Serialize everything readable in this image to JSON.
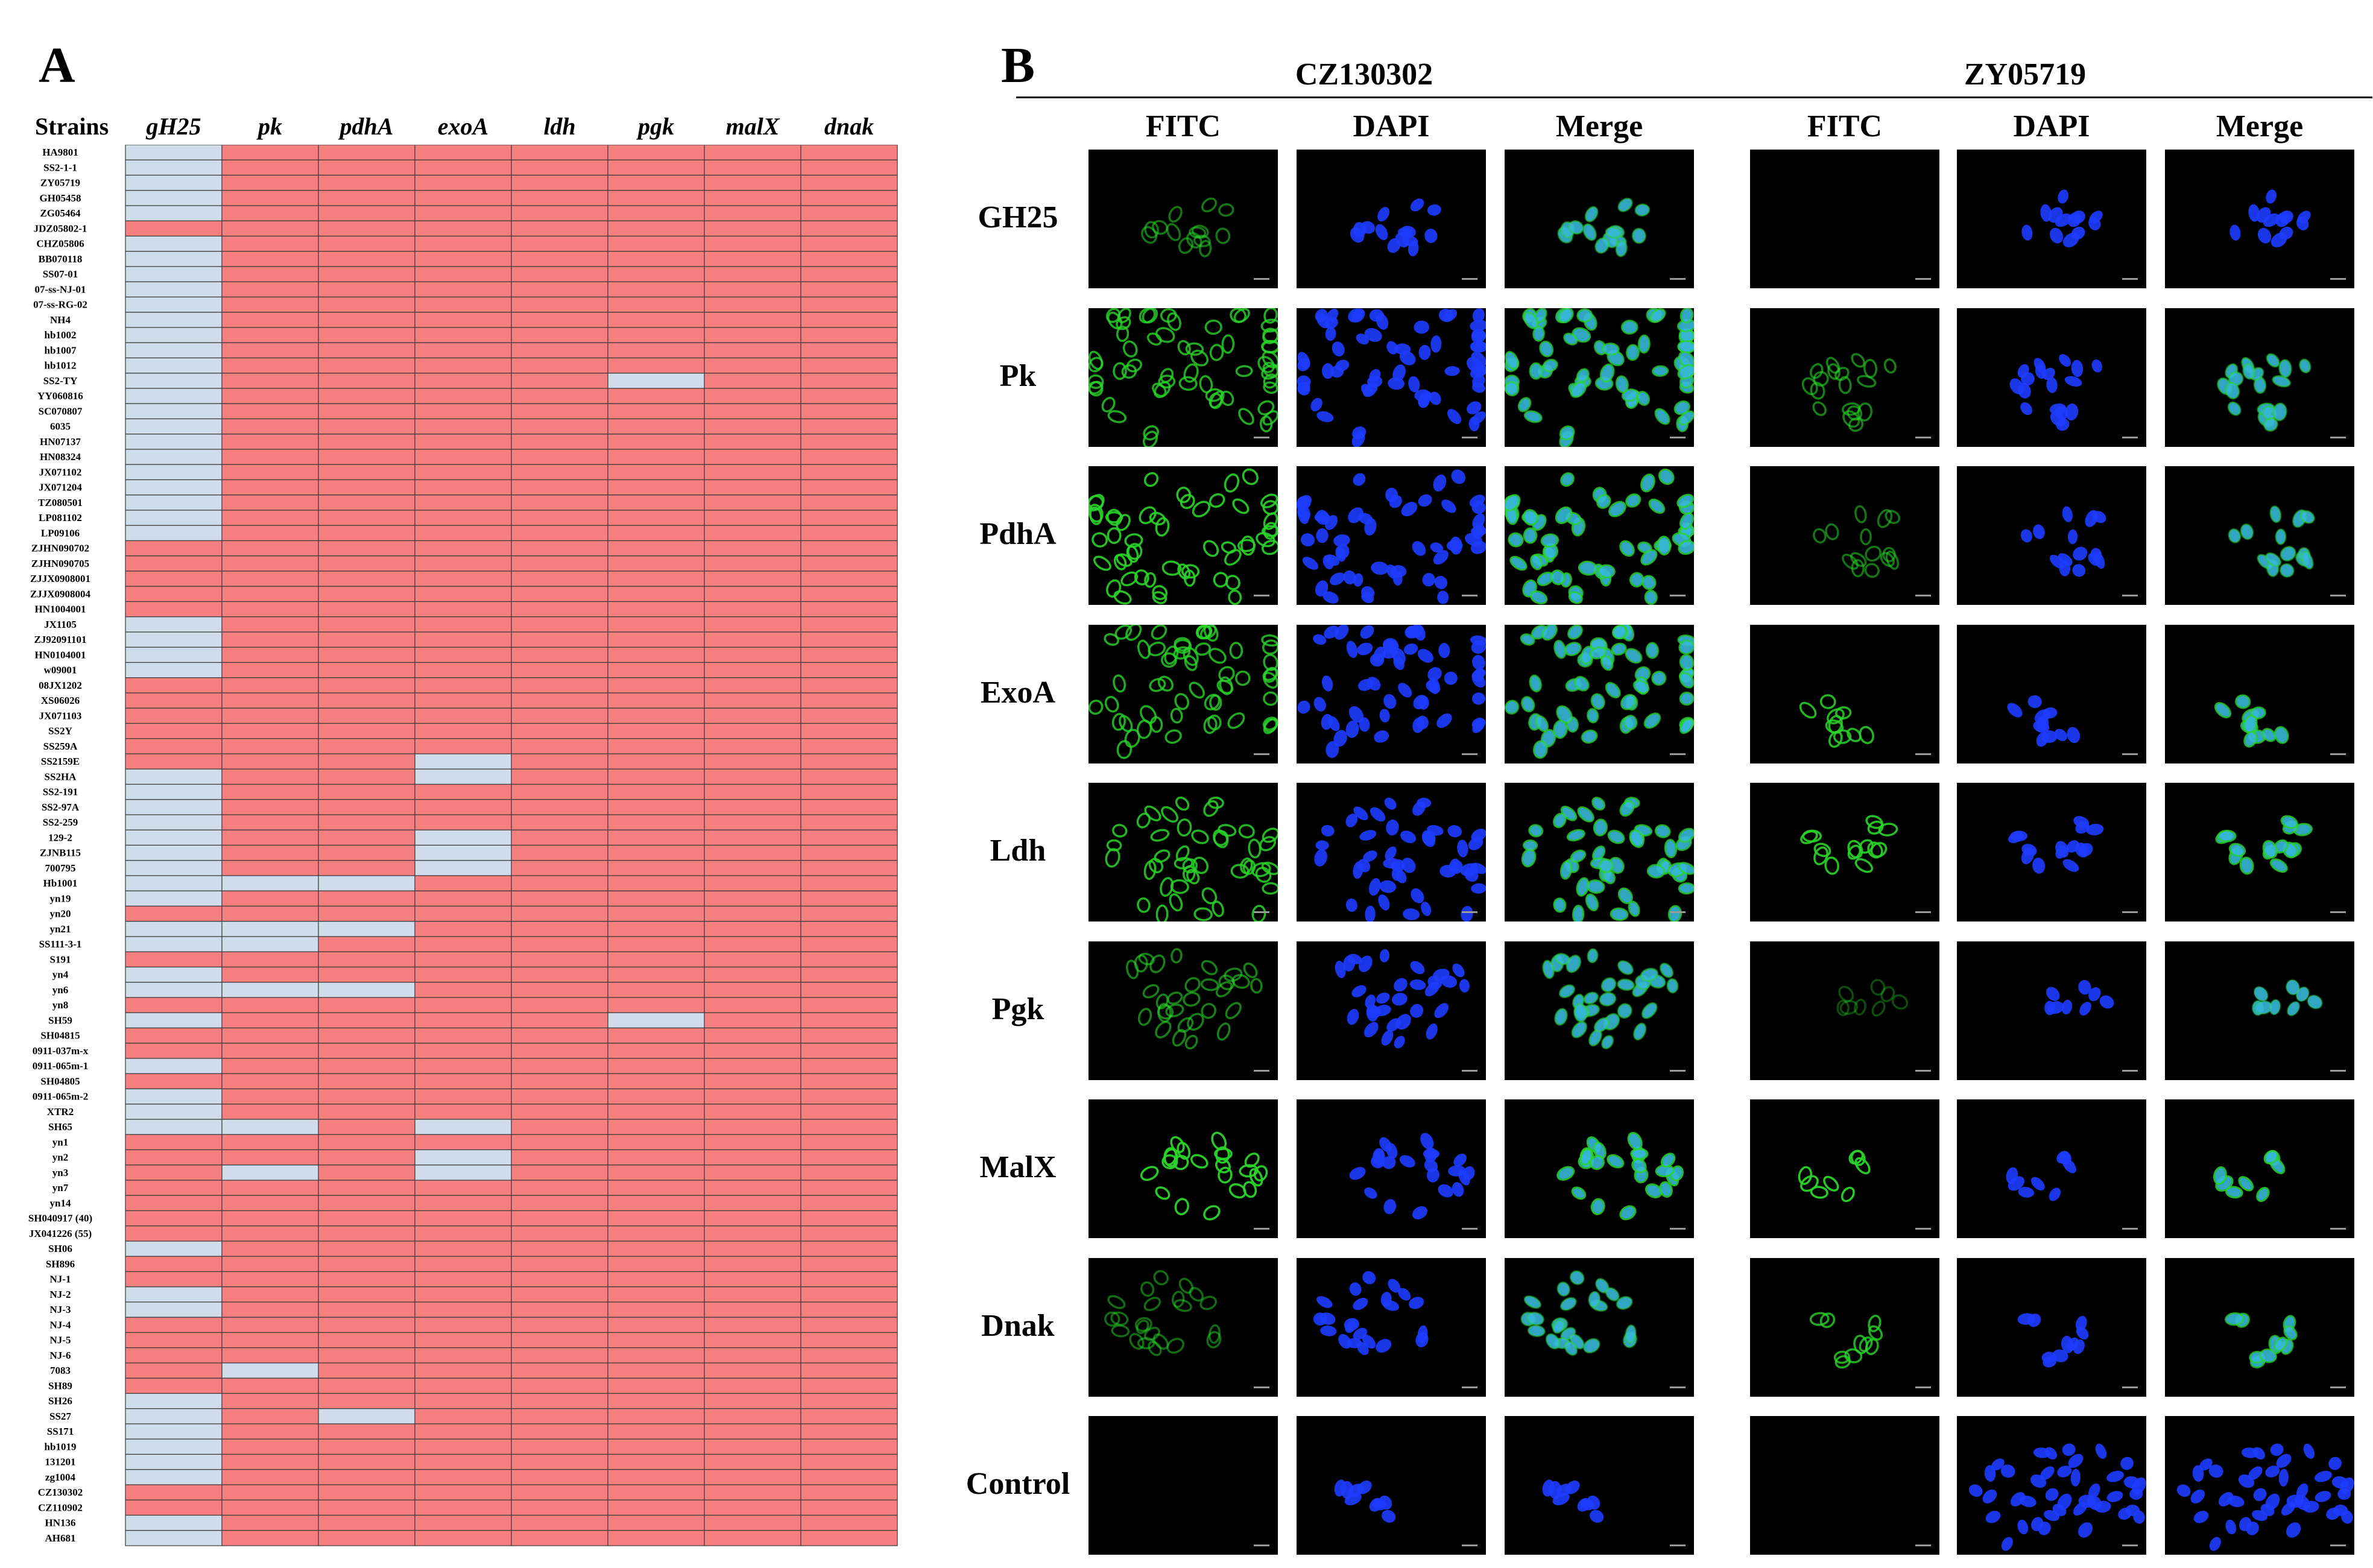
{
  "panel_labels": {
    "a": "A",
    "b": "B"
  },
  "chart_data": [
    {
      "type": "heatmap",
      "panel": "A",
      "row_header": "Strains",
      "columns": [
        "gH25",
        "pk",
        "pdhA",
        "exoA",
        "ldh",
        "pgk",
        "malX",
        "dnak"
      ],
      "rows": [
        "HA9801",
        "SS2-1-1",
        "ZY05719",
        "GH05458",
        "ZG05464",
        "JDZ05802-1",
        "CHZ05806",
        "BB070118",
        "SS07-01",
        "07-ss-NJ-01",
        "07-ss-RG-02",
        "NH4",
        "hb1002",
        "hb1007",
        "hb1012",
        "SS2-TY",
        "YY060816",
        "SC070807",
        "6035",
        "HN07137",
        "HN08324",
        "JX071102",
        "JX071204",
        "TZ080501",
        "LP081102",
        "LP09106",
        "ZJHN090702",
        "ZJHN090705",
        "ZJJX0908001",
        "ZJJX0908004",
        "HN1004001",
        "JX1105",
        "ZJ92091101",
        "HN0104001",
        "w09001",
        "08JX1202",
        "XS06026",
        "JX071103",
        "SS2Y",
        "SS259A",
        "SS2159E",
        "SS2HA",
        "SS2-191",
        "SS2-97A",
        "SS2-259",
        "129-2",
        "ZJNB115",
        "700795",
        "Hb1001",
        "yn19",
        "yn20",
        "yn21",
        "SS111-3-1",
        "S191",
        "yn4",
        "yn6",
        "yn8",
        "SH59",
        "SH04815",
        "0911-037m-x",
        "0911-065m-1",
        "SH04805",
        "0911-065m-2",
        "XTR2",
        "SH65",
        "yn1",
        "yn2",
        "yn3",
        "yn7",
        "yn14",
        "SH040917 (40)",
        "JX041226 (55)",
        "SH06",
        "SH896",
        "NJ-1",
        "NJ-2",
        "NJ-3",
        "NJ-4",
        "NJ-5",
        "NJ-6",
        "7083",
        "SH89",
        "SH26",
        "SS27",
        "SS171",
        "hb1019",
        "131201",
        "zg1004",
        "CZ130302",
        "CZ110902",
        "HN136",
        "AH681"
      ],
      "values": [
        [
          0,
          1,
          1,
          1,
          1,
          1,
          1,
          1
        ],
        [
          0,
          1,
          1,
          1,
          1,
          1,
          1,
          1
        ],
        [
          0,
          1,
          1,
          1,
          1,
          1,
          1,
          1
        ],
        [
          0,
          1,
          1,
          1,
          1,
          1,
          1,
          1
        ],
        [
          0,
          1,
          1,
          1,
          1,
          1,
          1,
          1
        ],
        [
          1,
          1,
          1,
          1,
          1,
          1,
          1,
          1
        ],
        [
          0,
          1,
          1,
          1,
          1,
          1,
          1,
          1
        ],
        [
          0,
          1,
          1,
          1,
          1,
          1,
          1,
          1
        ],
        [
          0,
          1,
          1,
          1,
          1,
          1,
          1,
          1
        ],
        [
          0,
          1,
          1,
          1,
          1,
          1,
          1,
          1
        ],
        [
          0,
          1,
          1,
          1,
          1,
          1,
          1,
          1
        ],
        [
          0,
          1,
          1,
          1,
          1,
          1,
          1,
          1
        ],
        [
          0,
          1,
          1,
          1,
          1,
          1,
          1,
          1
        ],
        [
          0,
          1,
          1,
          1,
          1,
          1,
          1,
          1
        ],
        [
          0,
          1,
          1,
          1,
          1,
          1,
          1,
          1
        ],
        [
          0,
          1,
          1,
          1,
          1,
          0,
          1,
          1
        ],
        [
          0,
          1,
          1,
          1,
          1,
          1,
          1,
          1
        ],
        [
          0,
          1,
          1,
          1,
          1,
          1,
          1,
          1
        ],
        [
          0,
          1,
          1,
          1,
          1,
          1,
          1,
          1
        ],
        [
          0,
          1,
          1,
          1,
          1,
          1,
          1,
          1
        ],
        [
          0,
          1,
          1,
          1,
          1,
          1,
          1,
          1
        ],
        [
          0,
          1,
          1,
          1,
          1,
          1,
          1,
          1
        ],
        [
          0,
          1,
          1,
          1,
          1,
          1,
          1,
          1
        ],
        [
          0,
          1,
          1,
          1,
          1,
          1,
          1,
          1
        ],
        [
          0,
          1,
          1,
          1,
          1,
          1,
          1,
          1
        ],
        [
          0,
          1,
          1,
          1,
          1,
          1,
          1,
          1
        ],
        [
          1,
          1,
          1,
          1,
          1,
          1,
          1,
          1
        ],
        [
          1,
          1,
          1,
          1,
          1,
          1,
          1,
          1
        ],
        [
          1,
          1,
          1,
          1,
          1,
          1,
          1,
          1
        ],
        [
          1,
          1,
          1,
          1,
          1,
          1,
          1,
          1
        ],
        [
          1,
          1,
          1,
          1,
          1,
          1,
          1,
          1
        ],
        [
          0,
          1,
          1,
          1,
          1,
          1,
          1,
          1
        ],
        [
          0,
          1,
          1,
          1,
          1,
          1,
          1,
          1
        ],
        [
          0,
          1,
          1,
          1,
          1,
          1,
          1,
          1
        ],
        [
          0,
          1,
          1,
          1,
          1,
          1,
          1,
          1
        ],
        [
          1,
          1,
          1,
          1,
          1,
          1,
          1,
          1
        ],
        [
          1,
          1,
          1,
          1,
          1,
          1,
          1,
          1
        ],
        [
          1,
          1,
          1,
          1,
          1,
          1,
          1,
          1
        ],
        [
          1,
          1,
          1,
          1,
          1,
          1,
          1,
          1
        ],
        [
          1,
          1,
          1,
          1,
          1,
          1,
          1,
          1
        ],
        [
          1,
          1,
          1,
          0,
          1,
          1,
          1,
          1
        ],
        [
          0,
          1,
          1,
          0,
          1,
          1,
          1,
          1
        ],
        [
          0,
          1,
          1,
          1,
          1,
          1,
          1,
          1
        ],
        [
          0,
          1,
          1,
          1,
          1,
          1,
          1,
          1
        ],
        [
          0,
          1,
          1,
          1,
          1,
          1,
          1,
          1
        ],
        [
          0,
          1,
          1,
          0,
          1,
          1,
          1,
          1
        ],
        [
          0,
          1,
          1,
          0,
          1,
          1,
          1,
          1
        ],
        [
          0,
          1,
          1,
          0,
          1,
          1,
          1,
          1
        ],
        [
          0,
          0,
          0,
          1,
          1,
          1,
          1,
          1
        ],
        [
          0,
          1,
          1,
          1,
          1,
          1,
          1,
          1
        ],
        [
          1,
          1,
          1,
          1,
          1,
          1,
          1,
          1
        ],
        [
          0,
          0,
          0,
          1,
          1,
          1,
          1,
          1
        ],
        [
          0,
          0,
          1,
          1,
          1,
          1,
          1,
          1
        ],
        [
          1,
          1,
          1,
          1,
          1,
          1,
          1,
          1
        ],
        [
          0,
          1,
          1,
          1,
          1,
          1,
          1,
          1
        ],
        [
          0,
          0,
          0,
          1,
          1,
          1,
          1,
          1
        ],
        [
          1,
          1,
          1,
          1,
          1,
          1,
          1,
          1
        ],
        [
          0,
          1,
          1,
          1,
          1,
          0,
          1,
          1
        ],
        [
          1,
          1,
          1,
          1,
          1,
          1,
          1,
          1
        ],
        [
          1,
          1,
          1,
          1,
          1,
          1,
          1,
          1
        ],
        [
          0,
          1,
          1,
          1,
          1,
          1,
          1,
          1
        ],
        [
          1,
          1,
          1,
          1,
          1,
          1,
          1,
          1
        ],
        [
          0,
          1,
          1,
          1,
          1,
          1,
          1,
          1
        ],
        [
          0,
          1,
          1,
          1,
          1,
          1,
          1,
          1
        ],
        [
          0,
          0,
          1,
          0,
          1,
          1,
          1,
          1
        ],
        [
          1,
          1,
          1,
          1,
          1,
          1,
          1,
          1
        ],
        [
          1,
          1,
          1,
          0,
          1,
          1,
          1,
          1
        ],
        [
          1,
          0,
          1,
          0,
          1,
          1,
          1,
          1
        ],
        [
          1,
          1,
          1,
          1,
          1,
          1,
          1,
          1
        ],
        [
          1,
          1,
          1,
          1,
          1,
          1,
          1,
          1
        ],
        [
          1,
          1,
          1,
          1,
          1,
          1,
          1,
          1
        ],
        [
          1,
          1,
          1,
          1,
          1,
          1,
          1,
          1
        ],
        [
          0,
          1,
          1,
          1,
          1,
          1,
          1,
          1
        ],
        [
          1,
          1,
          1,
          1,
          1,
          1,
          1,
          1
        ],
        [
          1,
          1,
          1,
          1,
          1,
          1,
          1,
          1
        ],
        [
          0,
          1,
          1,
          1,
          1,
          1,
          1,
          1
        ],
        [
          0,
          1,
          1,
          1,
          1,
          1,
          1,
          1
        ],
        [
          1,
          1,
          1,
          1,
          1,
          1,
          1,
          1
        ],
        [
          1,
          1,
          1,
          1,
          1,
          1,
          1,
          1
        ],
        [
          1,
          1,
          1,
          1,
          1,
          1,
          1,
          1
        ],
        [
          1,
          0,
          1,
          1,
          1,
          1,
          1,
          1
        ],
        [
          1,
          1,
          1,
          1,
          1,
          1,
          1,
          1
        ],
        [
          0,
          1,
          1,
          1,
          1,
          1,
          1,
          1
        ],
        [
          0,
          1,
          0,
          1,
          1,
          1,
          1,
          1
        ],
        [
          0,
          1,
          1,
          1,
          1,
          1,
          1,
          1
        ],
        [
          0,
          1,
          1,
          1,
          1,
          1,
          1,
          1
        ],
        [
          0,
          1,
          1,
          1,
          1,
          1,
          1,
          1
        ],
        [
          0,
          1,
          1,
          1,
          1,
          1,
          1,
          1
        ],
        [
          1,
          1,
          1,
          1,
          1,
          1,
          1,
          1
        ],
        [
          1,
          1,
          1,
          1,
          1,
          1,
          1,
          1
        ],
        [
          0,
          1,
          1,
          1,
          1,
          1,
          1,
          1
        ],
        [
          0,
          1,
          1,
          1,
          1,
          1,
          1,
          1
        ]
      ],
      "legend": {
        "positive_color": "#f77f7f",
        "negative_color": "#cfdcec"
      }
    },
    {
      "type": "table",
      "panel": "B",
      "description_type": "immunofluorescence image grid",
      "groups": [
        {
          "name": "CZ130302",
          "channels": [
            "FITC",
            "DAPI",
            "Merge"
          ]
        },
        {
          "name": "ZY05719",
          "channels": [
            "FITC",
            "DAPI",
            "Merge"
          ]
        }
      ],
      "rows": [
        "GH25",
        "Pk",
        "PdhA",
        "ExoA",
        "Ldh",
        "Pgk",
        "MalX",
        "Dnak",
        "Control"
      ],
      "fitc_intensity": {
        "CZ130302": [
          0.55,
          0.8,
          0.9,
          0.8,
          0.85,
          0.6,
          0.95,
          0.5,
          0.0
        ],
        "ZY05719": [
          0.0,
          0.6,
          0.55,
          0.85,
          0.9,
          0.35,
          0.95,
          0.8,
          0.0
        ]
      },
      "cell_density": {
        "CZ130302": [
          14,
          60,
          52,
          56,
          44,
          30,
          22,
          22,
          9
        ],
        "ZY05719": [
          12,
          18,
          14,
          10,
          14,
          8,
          8,
          10,
          40
        ]
      },
      "colors": {
        "fitc": "#2ad42a",
        "dapi": "#1e3cff",
        "merge": "#36b8d8"
      }
    }
  ]
}
